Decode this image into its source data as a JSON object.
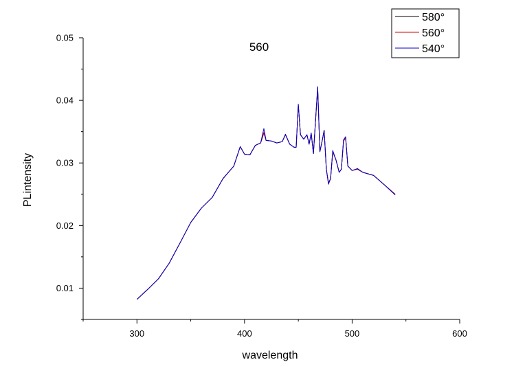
{
  "chart_data": {
    "type": "line",
    "title": "560",
    "xlabel": "wavelength",
    "ylabel": "PLintensity",
    "xlim": [
      250,
      600
    ],
    "ylim": [
      0.005,
      0.05
    ],
    "xticks": [
      300,
      400,
      500,
      600
    ],
    "yticks": [
      0.01,
      0.02,
      0.03,
      0.04,
      0.05
    ],
    "xtick_labels": [
      "300",
      "400",
      "500",
      "600"
    ],
    "ytick_labels": [
      "0.01",
      "0.02",
      "0.03",
      "0.04",
      "0.05"
    ],
    "grid": false,
    "legend_position": "top-right",
    "series": [
      {
        "name": "580°",
        "color": "#000000",
        "x": [
          300,
          310,
          320,
          330,
          340,
          350,
          360,
          370,
          380,
          390,
          396,
          400,
          405,
          410,
          415,
          418,
          420,
          425,
          430,
          435,
          438,
          442,
          446,
          448,
          450,
          452,
          455,
          458,
          460,
          462,
          464,
          466,
          468,
          470,
          472,
          474,
          476,
          478,
          480,
          482,
          485,
          488,
          490,
          492,
          494,
          496,
          500,
          505,
          510,
          520,
          530,
          540
        ],
        "y": [
          0.0082,
          0.0098,
          0.0115,
          0.014,
          0.0172,
          0.0205,
          0.0228,
          0.0245,
          0.0275,
          0.0295,
          0.0326,
          0.0314,
          0.0313,
          0.0328,
          0.0332,
          0.0348,
          0.0336,
          0.0335,
          0.0332,
          0.0334,
          0.0345,
          0.033,
          0.0325,
          0.0325,
          0.0392,
          0.0345,
          0.0338,
          0.0345,
          0.033,
          0.0347,
          0.0315,
          0.0368,
          0.042,
          0.0318,
          0.0334,
          0.0352,
          0.029,
          0.0268,
          0.0275,
          0.0318,
          0.0305,
          0.0285,
          0.029,
          0.0335,
          0.034,
          0.0295,
          0.0288,
          0.029,
          0.0285,
          0.028,
          0.0265,
          0.025
        ]
      },
      {
        "name": "560°",
        "color": "#cc0000",
        "x": [
          300,
          310,
          320,
          330,
          340,
          350,
          360,
          370,
          380,
          390,
          396,
          400,
          405,
          410,
          415,
          418,
          420,
          425,
          430,
          435,
          438,
          442,
          446,
          448,
          450,
          452,
          455,
          458,
          460,
          462,
          464,
          466,
          468,
          470,
          472,
          474,
          476,
          478,
          480,
          482,
          485,
          488,
          490,
          492,
          494,
          496,
          500,
          505,
          510,
          520,
          530,
          540
        ],
        "y": [
          0.0082,
          0.0098,
          0.0115,
          0.014,
          0.0172,
          0.0205,
          0.0228,
          0.0245,
          0.0275,
          0.0295,
          0.0326,
          0.0314,
          0.0313,
          0.0328,
          0.0332,
          0.0349,
          0.0336,
          0.0335,
          0.0332,
          0.0334,
          0.0345,
          0.033,
          0.0325,
          0.0325,
          0.0393,
          0.0345,
          0.0338,
          0.0345,
          0.033,
          0.0347,
          0.0315,
          0.0368,
          0.0421,
          0.0318,
          0.0334,
          0.0352,
          0.029,
          0.0268,
          0.0275,
          0.0318,
          0.0305,
          0.0285,
          0.029,
          0.0335,
          0.034,
          0.0295,
          0.0288,
          0.029,
          0.0285,
          0.028,
          0.0265,
          0.025
        ]
      },
      {
        "name": "540°",
        "color": "#0000cc",
        "x": [
          300,
          310,
          320,
          330,
          340,
          350,
          360,
          370,
          380,
          390,
          396,
          400,
          405,
          410,
          415,
          418,
          420,
          425,
          430,
          435,
          438,
          442,
          446,
          448,
          450,
          452,
          455,
          458,
          460,
          462,
          464,
          466,
          468,
          470,
          472,
          474,
          476,
          478,
          480,
          482,
          485,
          488,
          490,
          492,
          494,
          496,
          500,
          505,
          510,
          520,
          530,
          540
        ],
        "y": [
          0.0082,
          0.0098,
          0.0115,
          0.014,
          0.0172,
          0.0205,
          0.0228,
          0.0245,
          0.0275,
          0.0295,
          0.0326,
          0.0314,
          0.0313,
          0.0328,
          0.0332,
          0.0355,
          0.0336,
          0.0335,
          0.0332,
          0.0334,
          0.0346,
          0.033,
          0.0325,
          0.0325,
          0.0394,
          0.0345,
          0.0338,
          0.0345,
          0.033,
          0.0348,
          0.0315,
          0.0368,
          0.0422,
          0.0318,
          0.0334,
          0.0352,
          0.029,
          0.0266,
          0.0275,
          0.032,
          0.0305,
          0.0285,
          0.029,
          0.0337,
          0.0342,
          0.0295,
          0.0288,
          0.0291,
          0.0285,
          0.028,
          0.0265,
          0.0249
        ]
      }
    ]
  }
}
